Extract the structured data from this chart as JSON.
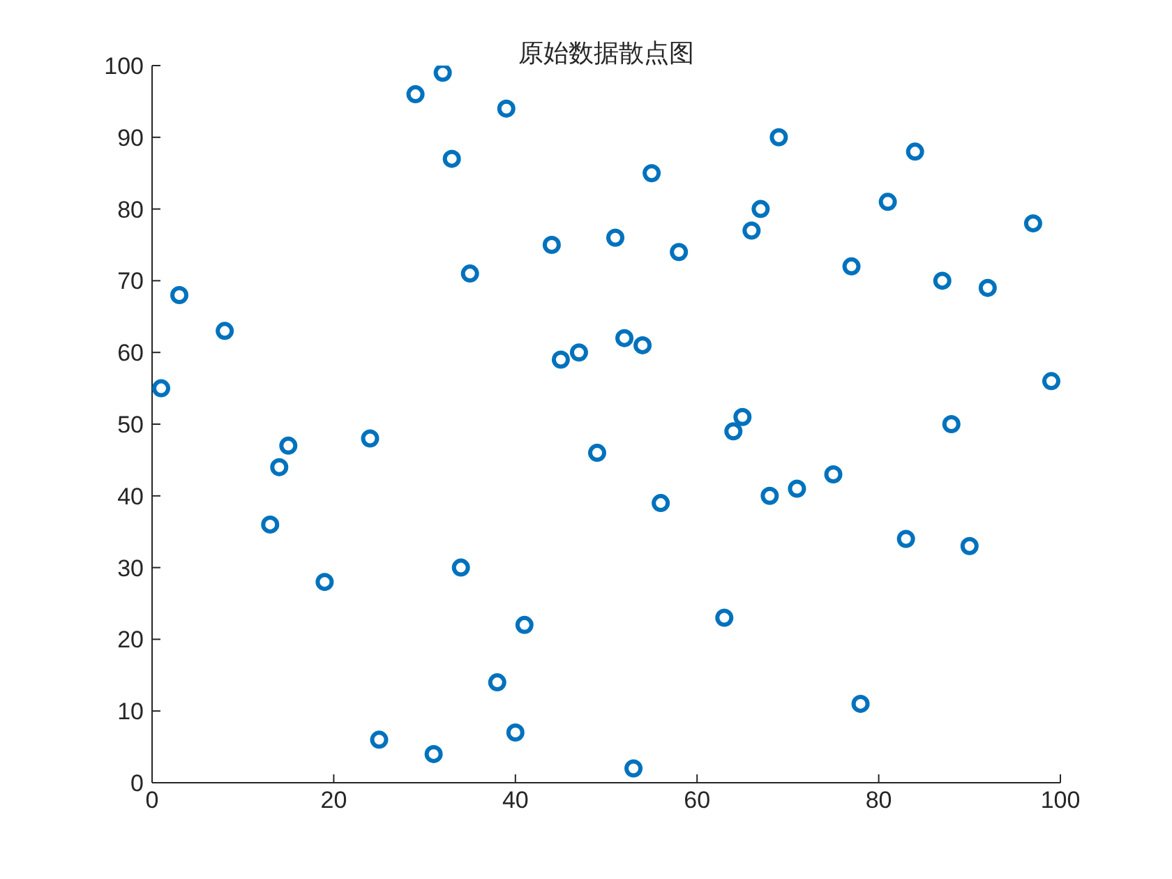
{
  "chart_data": {
    "type": "scatter",
    "title": "原始数据散点图",
    "x": [
      1,
      3,
      8,
      13,
      14,
      15,
      19,
      24,
      25,
      29,
      31,
      32,
      33,
      34,
      35,
      38,
      39,
      40,
      41,
      44,
      45,
      47,
      49,
      51,
      52,
      53,
      54,
      55,
      56,
      58,
      63,
      64,
      65,
      66,
      67,
      68,
      69,
      71,
      75,
      77,
      78,
      81,
      83,
      84,
      87,
      88,
      90,
      92,
      97,
      99
    ],
    "values": [
      55,
      68,
      63,
      36,
      44,
      47,
      28,
      48,
      6,
      96,
      4,
      99,
      87,
      30,
      71,
      14,
      94,
      7,
      22,
      75,
      59,
      60,
      46,
      76,
      62,
      2,
      61,
      85,
      39,
      74,
      23,
      49,
      51,
      77,
      80,
      40,
      90,
      41,
      43,
      72,
      11,
      81,
      34,
      88,
      70,
      50,
      33,
      69,
      78,
      56
    ],
    "color": "#0072bd",
    "marker": "circle",
    "xlim": [
      0,
      100
    ],
    "ylim": [
      0,
      100
    ],
    "xticks": [
      0,
      20,
      40,
      60,
      80,
      100
    ],
    "yticks": [
      0,
      10,
      20,
      30,
      40,
      50,
      60,
      70,
      80,
      90,
      100
    ]
  }
}
